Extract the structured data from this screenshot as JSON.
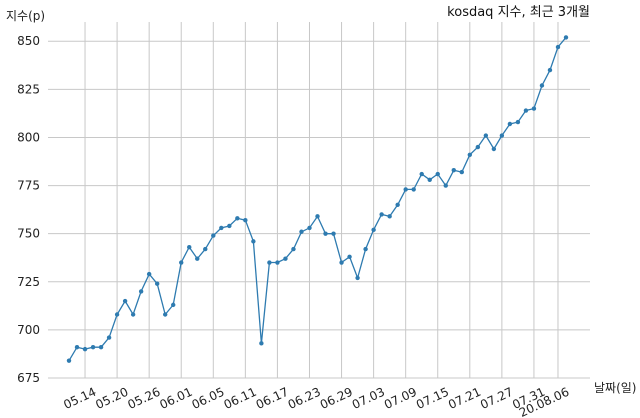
{
  "chart_data": {
    "type": "line",
    "title": "kosdaq 지수, 최근 3개월",
    "ylabel": "지수(p)",
    "xlabel": "날짜(일)",
    "ylim": [
      675,
      860
    ],
    "yticks": [
      675,
      700,
      725,
      750,
      775,
      800,
      825,
      850
    ],
    "grid": true,
    "series_color": "#2e7bb0",
    "x_tick_labels": [
      "05.14",
      "05.20",
      "05.26",
      "06.01",
      "06.05",
      "06.11",
      "06.17",
      "06.23",
      "06.29",
      "07.03",
      "07.09",
      "07.15",
      "07.21",
      "07.27",
      "07.31",
      "20.08.06"
    ],
    "x_tick_index": [
      2,
      6,
      10,
      14,
      18,
      22,
      26,
      30,
      34,
      38,
      42,
      46,
      50,
      54,
      58,
      61
    ],
    "values": [
      684,
      691,
      690,
      691,
      691,
      696,
      708,
      715,
      708,
      720,
      729,
      724,
      708,
      713,
      735,
      743,
      737,
      742,
      749,
      753,
      754,
      758,
      757,
      746,
      693,
      735,
      735,
      737,
      742,
      751,
      753,
      759,
      750,
      750,
      735,
      738,
      727,
      742,
      752,
      760,
      759,
      765,
      773,
      773,
      781,
      778,
      781,
      775,
      783,
      782,
      791,
      795,
      801,
      794,
      801,
      807,
      808,
      814,
      815,
      827,
      835,
      847,
      852
    ]
  }
}
